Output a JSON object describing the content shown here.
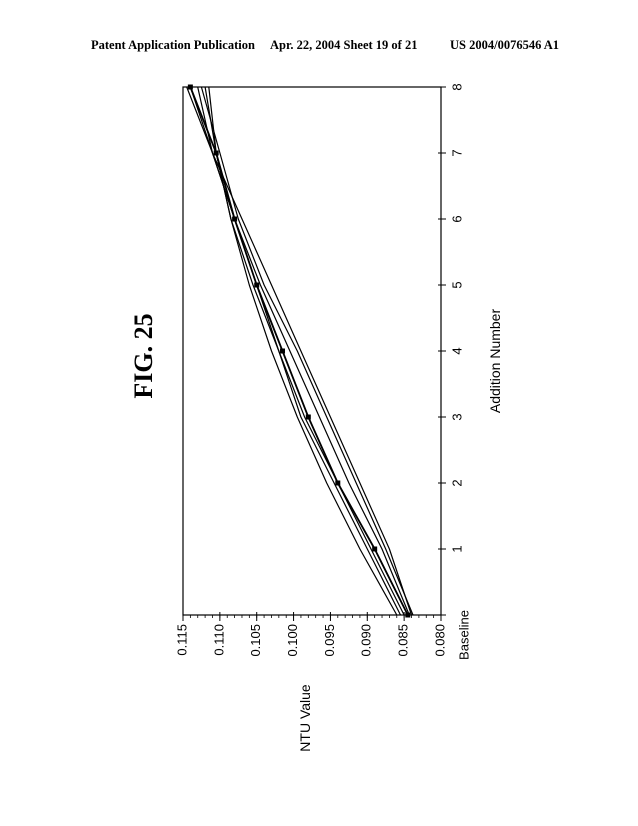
{
  "header": {
    "left": "Patent Application Publication",
    "middle": "Apr. 22, 2004   Sheet 19 of 21",
    "right": "US 2004/0076546 A1"
  },
  "figure": {
    "label": "FIG. 25"
  },
  "chart_data": {
    "type": "line",
    "orientation": "rotated 90° counter-clockwise on the page",
    "xlabel": "Addition Number",
    "ylabel": "NTU Value",
    "x": [
      0,
      1,
      2,
      3,
      4,
      5,
      6,
      7,
      8
    ],
    "x_tick_labels": [
      "Baseline",
      "1",
      "2",
      "3",
      "4",
      "5",
      "6",
      "7",
      "8"
    ],
    "y_tick_labels": [
      "0.080",
      "0.085",
      "0.090",
      "0.095",
      "0.100",
      "0.105",
      "0.110",
      "0.115"
    ],
    "xlim": [
      0,
      8
    ],
    "ylim": [
      0.08,
      0.115
    ],
    "grid": false,
    "legend": "none",
    "series": [
      {
        "marker": "square",
        "values": [
          0.0845,
          0.089,
          0.094,
          0.098,
          0.1015,
          0.105,
          0.108,
          0.1105,
          0.114
        ]
      },
      {
        "marker": "none",
        "values": [
          0.0843,
          0.088,
          0.0925,
          0.0965,
          0.1005,
          0.1045,
          0.108,
          0.111,
          0.114
        ]
      },
      {
        "marker": "none",
        "values": [
          0.085,
          0.0895,
          0.094,
          0.0985,
          0.102,
          0.1055,
          0.1085,
          0.1105,
          0.112
        ]
      },
      {
        "marker": "none",
        "values": [
          0.086,
          0.091,
          0.0955,
          0.0995,
          0.103,
          0.106,
          0.1085,
          0.1105,
          0.1115
        ]
      },
      {
        "marker": "none",
        "values": [
          0.084,
          0.087,
          0.091,
          0.095,
          0.099,
          0.103,
          0.107,
          0.111,
          0.1145
        ]
      },
      {
        "marker": "none",
        "values": [
          0.0855,
          0.09,
          0.0945,
          0.099,
          0.102,
          0.105,
          0.108,
          0.111,
          0.113
        ]
      },
      {
        "marker": "none",
        "values": [
          0.0838,
          0.0875,
          0.0915,
          0.0955,
          0.0995,
          0.104,
          0.1075,
          0.11,
          0.1125
        ]
      }
    ]
  }
}
